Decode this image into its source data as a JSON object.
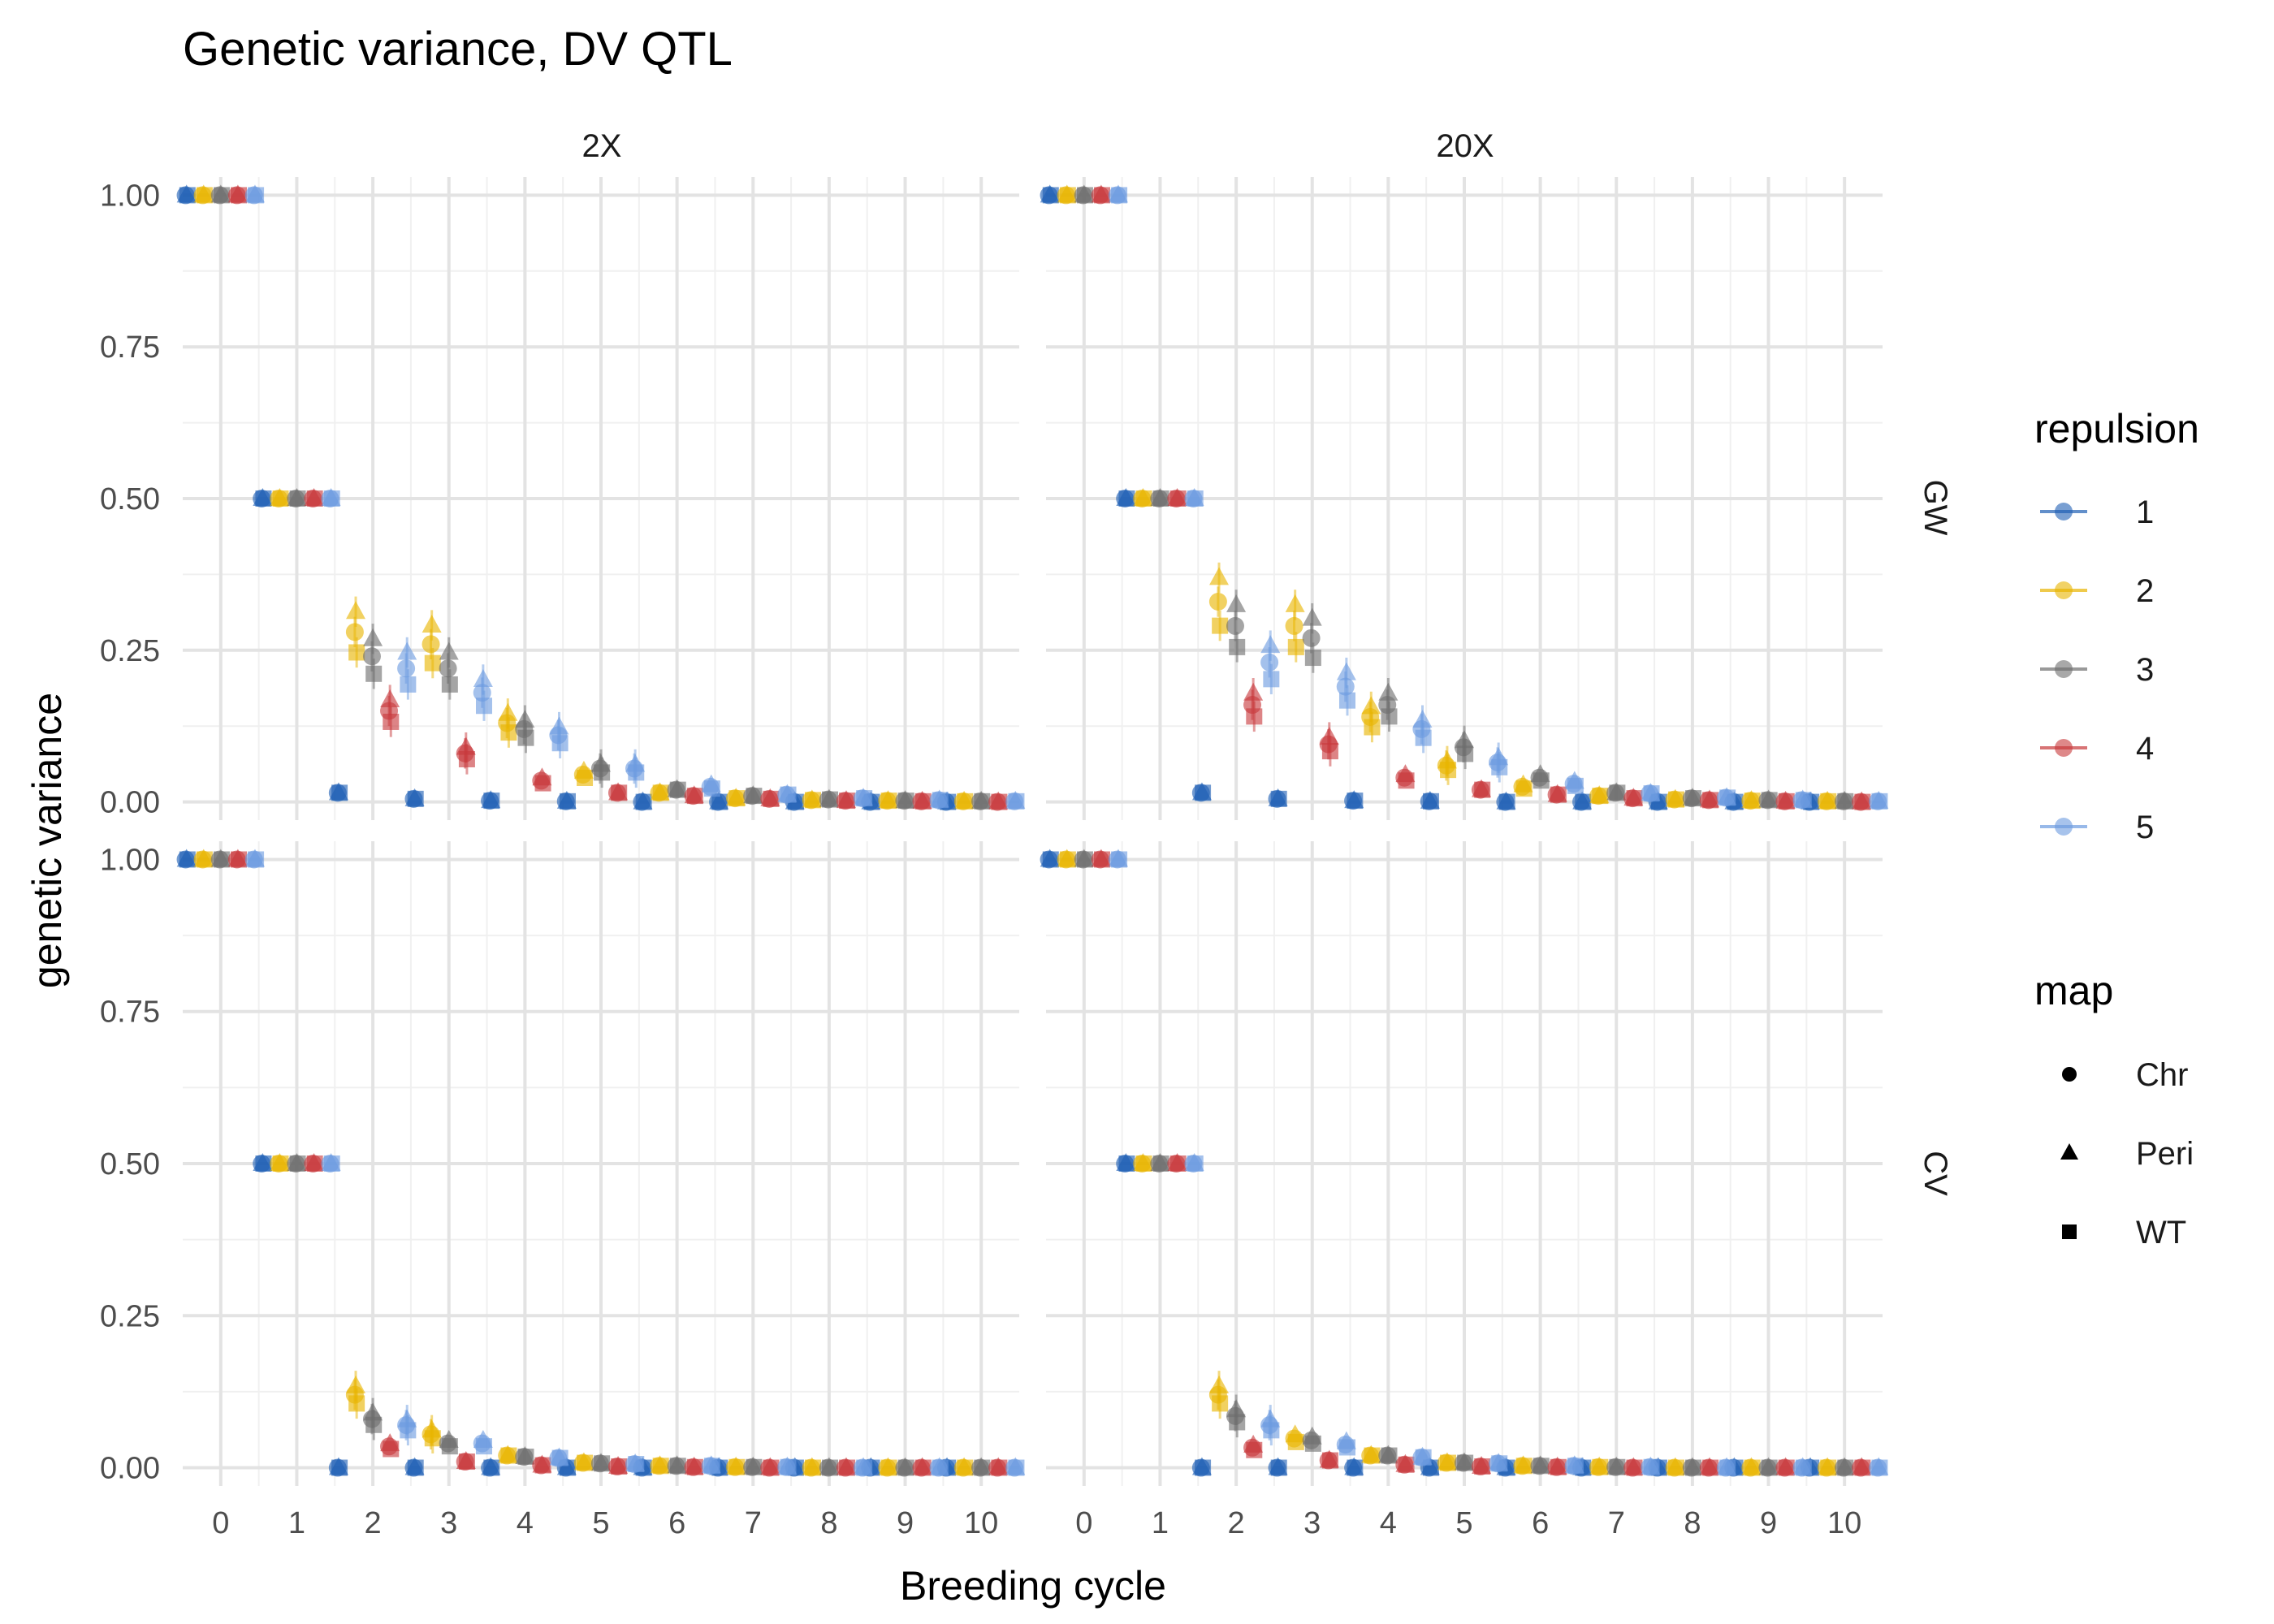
{
  "chart_data": {
    "type": "scatter",
    "title": "Genetic variance, DV QTL",
    "xlabel": "Breeding cycle",
    "ylabel": "genetic variance",
    "xlim": [
      -0.5,
      10.5
    ],
    "ylim": [
      -0.03,
      1.03
    ],
    "x_ticks": [
      "0",
      "1",
      "2",
      "3",
      "4",
      "5",
      "6",
      "7",
      "8",
      "9",
      "10"
    ],
    "y_ticks": [
      "0.00",
      "0.25",
      "0.50",
      "0.75",
      "1.00"
    ],
    "column_facets": [
      "2X",
      "20X"
    ],
    "row_facets": [
      "GW",
      "CV"
    ],
    "legend": {
      "position": "right",
      "repulsion_title": "repulsion",
      "repulsion": [
        {
          "label": "1",
          "color": "#1f5fb4"
        },
        {
          "label": "2",
          "color": "#e8b400"
        },
        {
          "label": "3",
          "color": "#6e6e6e"
        },
        {
          "label": "4",
          "color": "#c8393b"
        },
        {
          "label": "5",
          "color": "#6c9be0"
        }
      ],
      "map_title": "map",
      "map": [
        {
          "label": "Chr",
          "shape": "circle"
        },
        {
          "label": "Peri",
          "shape": "triangle"
        },
        {
          "label": "WT",
          "shape": "square"
        }
      ]
    },
    "grid": true,
    "panels": [
      {
        "col": "2X",
        "row": "GW",
        "series": {
          "1": [
            1.0,
            0.5,
            0.015,
            0.005,
            0.002,
            0.001,
            0.0,
            0.0,
            0.0,
            0.0,
            0.0
          ],
          "2": [
            1.0,
            0.5,
            0.28,
            0.26,
            0.13,
            0.045,
            0.015,
            0.006,
            0.003,
            0.002,
            0.001
          ],
          "3": [
            1.0,
            0.5,
            0.24,
            0.22,
            0.12,
            0.055,
            0.02,
            0.01,
            0.004,
            0.002,
            0.001
          ],
          "4": [
            1.0,
            0.5,
            0.15,
            0.08,
            0.035,
            0.015,
            0.01,
            0.005,
            0.002,
            0.001,
            0.0
          ],
          "5": [
            1.0,
            0.5,
            0.22,
            0.18,
            0.11,
            0.055,
            0.025,
            0.012,
            0.006,
            0.003,
            0.001
          ]
        }
      },
      {
        "col": "20X",
        "row": "GW",
        "series": {
          "1": [
            1.0,
            0.5,
            0.015,
            0.005,
            0.002,
            0.001,
            0.0,
            0.0,
            0.0,
            0.0,
            0.0
          ],
          "2": [
            1.0,
            0.5,
            0.33,
            0.29,
            0.14,
            0.06,
            0.025,
            0.01,
            0.004,
            0.002,
            0.001
          ],
          "3": [
            1.0,
            0.5,
            0.29,
            0.27,
            0.16,
            0.09,
            0.04,
            0.015,
            0.006,
            0.003,
            0.001
          ],
          "4": [
            1.0,
            0.5,
            0.16,
            0.095,
            0.04,
            0.02,
            0.012,
            0.006,
            0.003,
            0.001,
            0.0
          ],
          "5": [
            1.0,
            0.5,
            0.23,
            0.19,
            0.12,
            0.065,
            0.03,
            0.014,
            0.007,
            0.003,
            0.001
          ]
        }
      },
      {
        "col": "2X",
        "row": "CV",
        "series": {
          "1": [
            1.0,
            0.5,
            0.0,
            0.0,
            0.0,
            0.0,
            0.0,
            0.0,
            0.0,
            0.0,
            0.0
          ],
          "2": [
            1.0,
            0.5,
            0.12,
            0.055,
            0.02,
            0.008,
            0.003,
            0.001,
            0.0,
            0.0,
            0.0
          ],
          "3": [
            1.0,
            0.5,
            0.08,
            0.04,
            0.018,
            0.007,
            0.003,
            0.001,
            0.0,
            0.0,
            0.0
          ],
          "4": [
            1.0,
            0.5,
            0.035,
            0.01,
            0.004,
            0.002,
            0.001,
            0.0,
            0.0,
            0.0,
            0.0
          ],
          "5": [
            1.0,
            0.5,
            0.07,
            0.04,
            0.016,
            0.006,
            0.003,
            0.001,
            0.0,
            0.0,
            0.0
          ]
        }
      },
      {
        "col": "20X",
        "row": "CV",
        "series": {
          "1": [
            1.0,
            0.5,
            0.0,
            0.0,
            0.0,
            0.0,
            0.0,
            0.0,
            0.0,
            0.0,
            0.0
          ],
          "2": [
            1.0,
            0.5,
            0.12,
            0.048,
            0.02,
            0.008,
            0.003,
            0.001,
            0.0,
            0.0,
            0.0
          ],
          "3": [
            1.0,
            0.5,
            0.085,
            0.045,
            0.02,
            0.008,
            0.003,
            0.001,
            0.0,
            0.0,
            0.0
          ],
          "4": [
            1.0,
            0.5,
            0.033,
            0.012,
            0.005,
            0.002,
            0.001,
            0.0,
            0.0,
            0.0,
            0.0
          ],
          "5": [
            1.0,
            0.5,
            0.07,
            0.038,
            0.017,
            0.007,
            0.003,
            0.001,
            0.0,
            0.0,
            0.0
          ]
        }
      }
    ]
  }
}
